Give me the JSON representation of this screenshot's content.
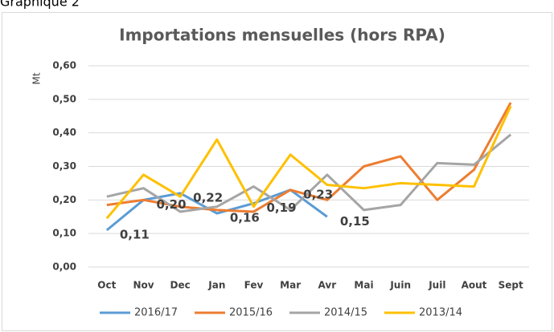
{
  "caption": "Graphique 2",
  "chart_data": {
    "type": "line",
    "title": "Importations mensuelles (hors RPA)",
    "y_label": "Mt",
    "categories": [
      "Oct",
      "Nov",
      "Dec",
      "Jan",
      "Fev",
      "Mar",
      "Avr",
      "Mai",
      "Juin",
      "Juil",
      "Aout",
      "Sept"
    ],
    "ylim": [
      0,
      0.6
    ],
    "yticks": [
      {
        "value": 0,
        "label": "0,00"
      },
      {
        "value": 0.1,
        "label": "0,10"
      },
      {
        "value": 0.2,
        "label": "0,20"
      },
      {
        "value": 0.3,
        "label": "0,30"
      },
      {
        "value": 0.4,
        "label": "0,40"
      },
      {
        "value": 0.5,
        "label": "0,50"
      },
      {
        "value": 0.6,
        "label": "0,60"
      }
    ],
    "grid": true,
    "legend": "bottom",
    "series": [
      {
        "name": "2016/17",
        "color": "#5b9bd5",
        "values": [
          0.11,
          0.2,
          0.22,
          0.16,
          0.19,
          0.23,
          0.15,
          null,
          null,
          null,
          null,
          null
        ],
        "value_labels": [
          "0,11",
          "0,20",
          "0,22",
          "0,16",
          "0,19",
          "0,23",
          "0,15",
          null,
          null,
          null,
          null,
          null
        ]
      },
      {
        "name": "2015/16",
        "color": "#ed7d31",
        "values": [
          0.185,
          0.2,
          0.18,
          0.17,
          0.165,
          0.23,
          0.2,
          0.3,
          0.33,
          0.2,
          0.29,
          0.49
        ]
      },
      {
        "name": "2014/15",
        "color": "#a5a5a5",
        "values": [
          0.21,
          0.235,
          0.165,
          0.18,
          0.24,
          0.17,
          0.275,
          0.17,
          0.185,
          0.31,
          0.305,
          0.395
        ]
      },
      {
        "name": "2013/14",
        "color": "#ffc000",
        "values": [
          0.145,
          0.275,
          0.21,
          0.38,
          0.18,
          0.335,
          0.245,
          0.235,
          0.25,
          0.245,
          0.24,
          0.48
        ]
      }
    ]
  }
}
